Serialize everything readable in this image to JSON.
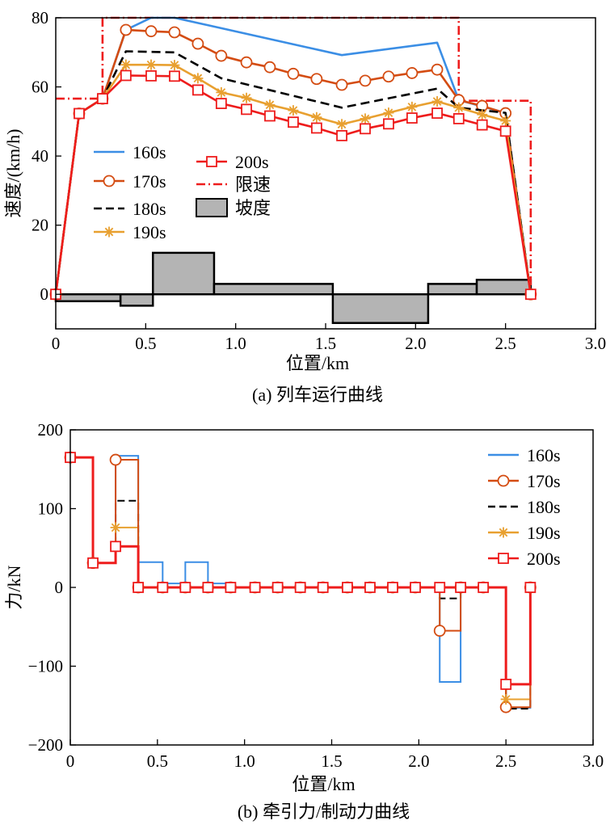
{
  "charts": [
    {
      "type": "line",
      "caption": "(a) 列车运行曲线",
      "xlabel": "位置/km",
      "ylabel": "速度/(km/h)",
      "xlim": [
        0,
        3.0
      ],
      "ylim": [
        -10,
        80
      ],
      "xticks": [
        0,
        0.5,
        1.0,
        1.5,
        2.0,
        2.5,
        3.0
      ],
      "xtick_labels": [
        "0",
        "0.5",
        "1.0",
        "1.5",
        "2.0",
        "2.5",
        "3.0"
      ],
      "yticks": [
        0,
        20,
        40,
        60,
        80
      ],
      "ytick_labels": [
        "0",
        "20",
        "40",
        "60",
        "80"
      ],
      "legend_position": "middle-left",
      "series": [
        {
          "name": "160s",
          "color": "#3b8ee5",
          "dash": "",
          "marker": "none",
          "x": [
            0,
            0.13,
            0.26,
            0.39,
            0.53,
            0.66,
            0.92,
            1.59,
            2.12,
            2.24,
            2.5,
            2.64
          ],
          "y": [
            0,
            52.3,
            56.6,
            76.5,
            80,
            80,
            77,
            69.2,
            72.8,
            56.2,
            52.5,
            0
          ]
        },
        {
          "name": "170s",
          "color": "#d44c12",
          "dash": "",
          "marker": "circle",
          "x": [
            0,
            0.13,
            0.26,
            0.39,
            0.53,
            0.66,
            0.79,
            0.92,
            1.06,
            1.19,
            1.32,
            1.45,
            1.59,
            1.72,
            1.85,
            1.98,
            2.12,
            2.24,
            2.37,
            2.5,
            2.64
          ],
          "y": [
            0,
            52.3,
            56.6,
            76.5,
            76.1,
            75.8,
            72.5,
            69,
            67.1,
            65.7,
            63.8,
            62.3,
            60.6,
            61.8,
            63,
            64,
            65,
            56.2,
            54.5,
            52.4,
            0
          ]
        },
        {
          "name": "180s",
          "color": "#000000",
          "dash": "11 6",
          "marker": "none",
          "x": [
            0,
            0.13,
            0.26,
            0.39,
            0.66,
            0.92,
            1.59,
            2.12,
            2.24,
            2.5,
            2.64
          ],
          "y": [
            0,
            52.3,
            56.6,
            70.3,
            70,
            62.5,
            54,
            59.5,
            54,
            52.5,
            0
          ]
        },
        {
          "name": "190s",
          "color": "#e8a030",
          "dash": "",
          "marker": "star",
          "x": [
            0,
            0.13,
            0.26,
            0.39,
            0.53,
            0.66,
            0.79,
            0.92,
            1.06,
            1.19,
            1.32,
            1.45,
            1.59,
            1.72,
            1.85,
            1.98,
            2.12,
            2.24,
            2.37,
            2.5,
            2.64
          ],
          "y": [
            0,
            52.3,
            56.6,
            66.4,
            66.4,
            66.3,
            62.5,
            58.4,
            56.8,
            54.8,
            53.2,
            51.2,
            49.2,
            50.8,
            52.5,
            54.2,
            55.8,
            54,
            52,
            50.2,
            0
          ]
        },
        {
          "name": "200s",
          "color": "#ee1c1c",
          "dash": "",
          "marker": "square",
          "x": [
            0,
            0.13,
            0.26,
            0.39,
            0.53,
            0.66,
            0.79,
            0.92,
            1.06,
            1.19,
            1.32,
            1.45,
            1.59,
            1.72,
            1.85,
            1.98,
            2.12,
            2.24,
            2.37,
            2.5,
            2.64
          ],
          "y": [
            0,
            52.3,
            56.6,
            63.3,
            63.2,
            63.1,
            59.1,
            55.2,
            53.5,
            51.6,
            49.8,
            48.1,
            45.9,
            47.9,
            49.3,
            51,
            52.4,
            50.8,
            49,
            47.2,
            0
          ]
        },
        {
          "name": "限速",
          "color": "#ee1c1c",
          "dash": "11 4 2 4",
          "marker": "none",
          "x": [
            0,
            0.26,
            0.26,
            2.24,
            2.24,
            2.64,
            2.64
          ],
          "y": [
            56.6,
            56.6,
            80,
            80,
            56,
            56,
            0
          ]
        }
      ],
      "gradient": {
        "name": "坡度",
        "fill": "#b4b4b4",
        "segments": [
          [
            0,
            0.36,
            -2
          ],
          [
            0.36,
            0.54,
            -3.3
          ],
          [
            0.54,
            0.88,
            12
          ],
          [
            0.88,
            1.54,
            3
          ],
          [
            1.54,
            2.07,
            -8.3
          ],
          [
            2.07,
            2.34,
            3
          ],
          [
            2.34,
            2.64,
            4.2
          ]
        ]
      }
    },
    {
      "type": "line",
      "caption": "(b) 牵引力/制动力曲线",
      "xlabel": "位置/km",
      "ylabel": "力/kN",
      "xlim": [
        0,
        3.0
      ],
      "ylim": [
        -200,
        200
      ],
      "xticks": [
        0,
        0.5,
        1.0,
        1.5,
        2.0,
        2.5,
        3.0
      ],
      "xtick_labels": [
        "0",
        "0.5",
        "1.0",
        "1.5",
        "2.0",
        "2.5",
        "3.0"
      ],
      "yticks": [
        -200,
        -100,
        0,
        100,
        200
      ],
      "ytick_labels": [
        "−200",
        "−100",
        "0",
        "100",
        "200"
      ],
      "legend_position": "top-right",
      "step_x": [
        0,
        0.13,
        0.26,
        0.39,
        0.53,
        0.66,
        0.79,
        0.92,
        1.06,
        1.19,
        1.32,
        1.45,
        1.59,
        1.72,
        1.85,
        1.98,
        2.12,
        2.24,
        2.37,
        2.5,
        2.64
      ],
      "series": [
        {
          "name": "160s",
          "color": "#3b8ee5",
          "dash": "",
          "marker": "none",
          "y": [
            165,
            31,
            167,
            32,
            5,
            32,
            5,
            0,
            0,
            0,
            0,
            0,
            0,
            0,
            0,
            0,
            -120,
            0,
            0,
            -153,
            0
          ]
        },
        {
          "name": "170s",
          "color": "#d44c12",
          "dash": "",
          "marker": "circle",
          "y": [
            165,
            31,
            162,
            0,
            0,
            0,
            0,
            0,
            0,
            0,
            0,
            0,
            0,
            0,
            0,
            0,
            -55,
            0,
            0,
            -152,
            0
          ]
        },
        {
          "name": "180s",
          "color": "#000000",
          "dash": "9 5",
          "marker": "none",
          "y": [
            165,
            31,
            110,
            0,
            0,
            0,
            0,
            0,
            0,
            0,
            0,
            0,
            0,
            0,
            0,
            0,
            -14,
            0,
            0,
            -154,
            0
          ]
        },
        {
          "name": "190s",
          "color": "#e8a030",
          "dash": "",
          "marker": "star",
          "y": [
            165,
            31,
            76,
            0,
            0,
            0,
            0,
            0,
            0,
            0,
            0,
            0,
            0,
            0,
            0,
            0,
            0,
            0,
            0,
            -142,
            0
          ]
        },
        {
          "name": "200s",
          "color": "#ee1c1c",
          "dash": "",
          "marker": "square",
          "y": [
            165,
            31,
            52,
            0,
            0,
            0,
            0,
            0,
            0,
            0,
            0,
            0,
            0,
            0,
            0,
            0,
            0,
            0,
            0,
            -123,
            0
          ]
        }
      ]
    }
  ]
}
